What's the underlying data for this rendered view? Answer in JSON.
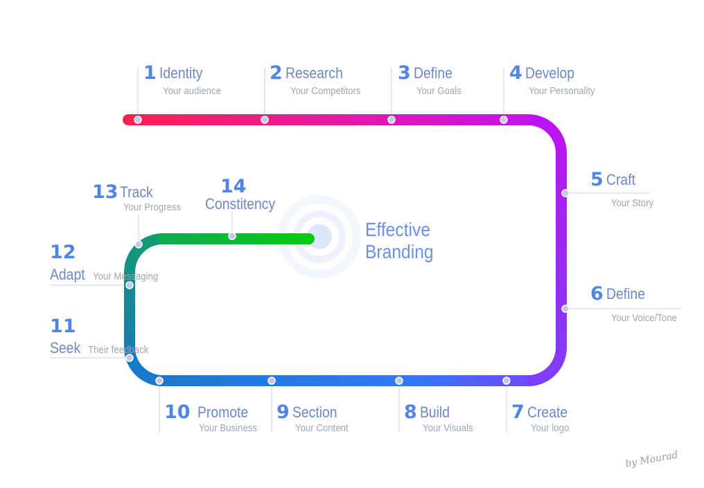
{
  "center": {
    "line1": "Effective",
    "line2": "Branding"
  },
  "steps": [
    {
      "num": "1",
      "title": "Identity",
      "subtitle": "Your audience"
    },
    {
      "num": "2",
      "title": "Research",
      "subtitle": "Your Competitors"
    },
    {
      "num": "3",
      "title": "Define",
      "subtitle": "Your Goals"
    },
    {
      "num": "4",
      "title": "Develop",
      "subtitle": "Your Personality"
    },
    {
      "num": "5",
      "title": "Craft",
      "subtitle": "Your Story"
    },
    {
      "num": "6",
      "title": "Define",
      "subtitle": "Your Voice/Tone"
    },
    {
      "num": "7",
      "title": "Create",
      "subtitle": "Your logo"
    },
    {
      "num": "8",
      "title": "Build",
      "subtitle": "Your Visuals"
    },
    {
      "num": "9",
      "title": "Section",
      "subtitle": "Your Content"
    },
    {
      "num": "10",
      "title": "Promote",
      "subtitle": "Your Business"
    },
    {
      "num": "11",
      "title": "Seek",
      "subtitle": "Their feedback"
    },
    {
      "num": "12",
      "title": "Adapt",
      "subtitle": "Your Messaging"
    },
    {
      "num": "13",
      "title": "Track",
      "subtitle": "Your Progress"
    },
    {
      "num": "14",
      "title": "Constitency"
    }
  ],
  "signature": "by Mourad",
  "colors": {
    "gradient": [
      "#ff1f4f",
      "#e51aa0",
      "#c00fe6",
      "#b217f0",
      "#8a3cf8",
      "#3f6ff5",
      "#1e88f0",
      "#167fb5",
      "#139a6a",
      "#04c81a"
    ],
    "number": "#4f86e6",
    "title": "#6d88c6",
    "subtitle": "#a0a6b3",
    "center_text": "#6b8ff0"
  }
}
